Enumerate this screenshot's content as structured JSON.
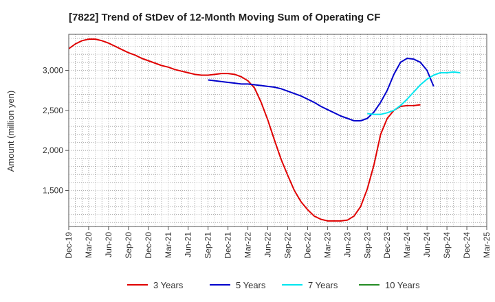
{
  "chart_data": {
    "type": "line",
    "title": "[7822]  Trend of StDev of 12-Month Moving Sum of Operating CF",
    "xlabel": "",
    "ylabel": "Amount (million yen)",
    "x_ticks": [
      "Dec-19",
      "Mar-20",
      "Jun-20",
      "Sep-20",
      "Dec-20",
      "Mar-21",
      "Jun-21",
      "Sep-21",
      "Dec-21",
      "Mar-22",
      "Jun-22",
      "Sep-22",
      "Dec-22",
      "Mar-23",
      "Jun-23",
      "Sep-23",
      "Dec-23",
      "Mar-24",
      "Jun-24",
      "Sep-24",
      "Dec-24",
      "Mar-25"
    ],
    "y_ticks": [
      1500,
      2000,
      2500,
      3000
    ],
    "y_tick_labels": [
      "1,500",
      "2,000",
      "2,500",
      "3,000"
    ],
    "ylim": [
      1050,
      3450
    ],
    "grid": true,
    "legend_position": "bottom",
    "series": [
      {
        "name": "3 Years",
        "color": "#e00000",
        "start_index": 0,
        "values": [
          3270,
          3330,
          3370,
          3390,
          3390,
          3370,
          3340,
          3300,
          3260,
          3220,
          3190,
          3150,
          3120,
          3090,
          3060,
          3040,
          3010,
          2990,
          2970,
          2950,
          2940,
          2940,
          2950,
          2960,
          2960,
          2950,
          2920,
          2870,
          2780,
          2600,
          2380,
          2130,
          1890,
          1690,
          1500,
          1360,
          1260,
          1180,
          1140,
          1120,
          1120,
          1120,
          1130,
          1180,
          1300,
          1520,
          1820,
          2200,
          2400,
          2500,
          2550,
          2560,
          2560,
          2570
        ]
      },
      {
        "name": "5 Years",
        "color": "#0000cc",
        "start_index": 21,
        "values": [
          2880,
          2870,
          2860,
          2850,
          2840,
          2830,
          2830,
          2820,
          2810,
          2800,
          2790,
          2770,
          2740,
          2710,
          2680,
          2640,
          2600,
          2550,
          2510,
          2470,
          2430,
          2400,
          2370,
          2370,
          2400,
          2480,
          2600,
          2750,
          2950,
          3100,
          3150,
          3140,
          3100,
          3000,
          2800
        ]
      },
      {
        "name": "7 Years",
        "color": "#00e5ee",
        "start_index": 45,
        "values": [
          2460,
          2450,
          2450,
          2470,
          2500,
          2560,
          2640,
          2730,
          2820,
          2890,
          2940,
          2970,
          2970,
          2980,
          2970
        ]
      },
      {
        "name": "10 Years",
        "color": "#228b22",
        "start_index": 0,
        "values": []
      }
    ]
  }
}
